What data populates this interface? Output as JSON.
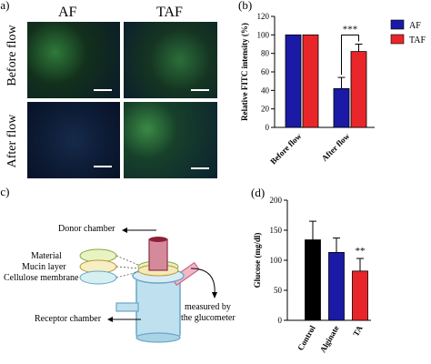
{
  "panels": {
    "a": {
      "label": "(a)",
      "columns": [
        "AF",
        "TAF"
      ],
      "rows": [
        "Before flow",
        "After flow"
      ]
    },
    "b": {
      "label": "(b)"
    },
    "c": {
      "label": "(c)",
      "labels": {
        "donor": "Donor chamber",
        "material": "Material",
        "mucin": "Mucin layer",
        "cellulose": "Cellulose membrane",
        "receptor": "Receptor chamber",
        "measured_1": "measured by",
        "measured_2": "the glucometer"
      }
    },
    "d": {
      "label": "(d)"
    }
  },
  "chart_data": [
    {
      "panel": "b",
      "type": "bar",
      "categories": [
        "Before flow",
        "After flow"
      ],
      "series": [
        {
          "name": "AF",
          "color": "#1a1aa6",
          "values": [
            100,
            42
          ],
          "errors": [
            0,
            12
          ]
        },
        {
          "name": "TAF",
          "color": "#e8262a",
          "values": [
            100,
            82
          ],
          "errors": [
            0,
            8
          ]
        }
      ],
      "ylabel": "Relative FITC intensity (%)",
      "ylim": [
        0,
        120
      ],
      "yticks": [
        0,
        20,
        40,
        60,
        80,
        100,
        120
      ],
      "annotation": "***",
      "legend": "top-right"
    },
    {
      "panel": "d",
      "type": "bar",
      "categories": [
        "Control",
        "Alginate",
        "TA"
      ],
      "values": [
        134,
        113,
        82
      ],
      "errors": [
        31,
        24,
        21
      ],
      "colors": [
        "#000000",
        "#1a1aa6",
        "#e8262a"
      ],
      "ylabel": "Glucose (mg/dl)",
      "ylim": [
        0,
        200
      ],
      "yticks": [
        0,
        50,
        100,
        150,
        200
      ],
      "annotation": "**"
    }
  ]
}
